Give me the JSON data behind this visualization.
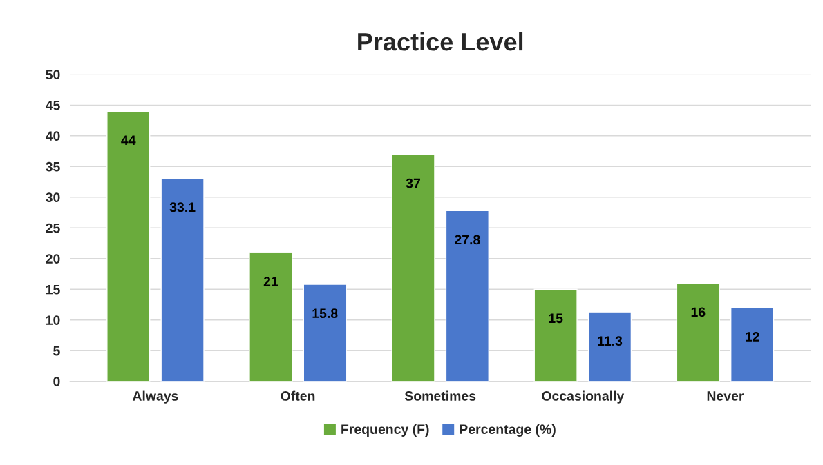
{
  "chart_data": {
    "type": "bar",
    "title": "Practice Level",
    "categories": [
      "Always",
      "Often",
      "Sometimes",
      "Occasionally",
      "Never"
    ],
    "series": [
      {
        "name": "Frequency (F)",
        "color": "#6aab3c",
        "values": [
          44,
          21,
          37,
          15,
          16
        ]
      },
      {
        "name": "Percentage (%)",
        "color": "#4a78cc",
        "values": [
          33.1,
          15.8,
          27.8,
          11.3,
          12
        ]
      }
    ],
    "ylim": [
      0,
      50
    ],
    "yticks": [
      0,
      5,
      10,
      15,
      20,
      25,
      30,
      35,
      40,
      45,
      50
    ],
    "grid": "y",
    "legend": "bottom",
    "data_labels": true
  }
}
